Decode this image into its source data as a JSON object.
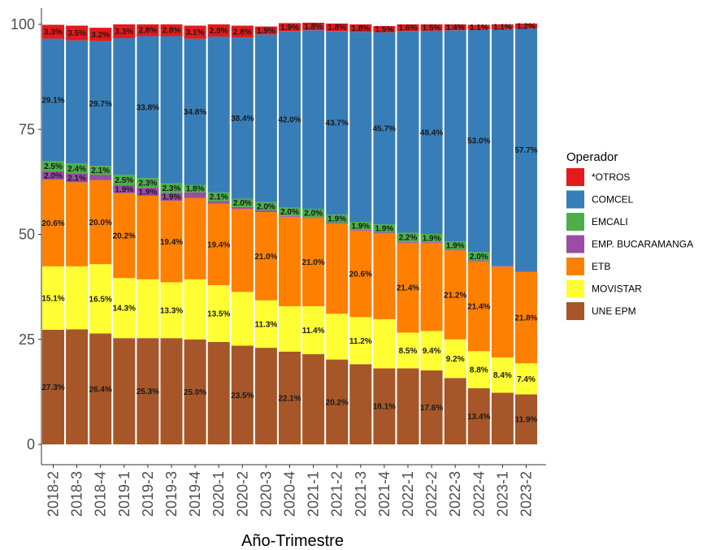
{
  "chart_data": {
    "type": "bar",
    "stacked": true,
    "title": "",
    "xlabel": "Año-Trimestre",
    "ylabel": "",
    "ylim": [
      0,
      100
    ],
    "yticks": [
      0,
      25,
      50,
      75,
      100
    ],
    "legend_title": "Operador",
    "legend_position": "right",
    "grid": false,
    "categories": [
      "2018-2",
      "2018-3",
      "2018-4",
      "2019-1",
      "2019-2",
      "2019-3",
      "2019-4",
      "2020-1",
      "2020-2",
      "2020-3",
      "2020-4",
      "2021-1",
      "2021-2",
      "2021-3",
      "2021-4",
      "2022-1",
      "2022-2",
      "2022-3",
      "2022-4",
      "2023-1",
      "2023-2"
    ],
    "stack_order": [
      "UNE EPM",
      "MOVISTAR",
      "ETB",
      "EMP. BUCARAMANGA",
      "EMCALI",
      "COMCEL",
      "*OTROS"
    ],
    "legend_order": [
      "*OTROS",
      "COMCEL",
      "EMCALI",
      "EMP. BUCARAMANGA",
      "ETB",
      "MOVISTAR",
      "UNE EPM"
    ],
    "series": [
      {
        "name": "UNE EPM",
        "color": "#A65628",
        "values": [
          27.3,
          27.4,
          26.4,
          25.3,
          25.3,
          25.3,
          25.0,
          24.4,
          23.5,
          23.0,
          22.1,
          21.5,
          20.2,
          19.1,
          18.1,
          18.1,
          17.6,
          15.8,
          13.4,
          12.3,
          11.9
        ],
        "labels": [
          "27.3%",
          "",
          "26.4%",
          "",
          "25.3%",
          "",
          "25.0%",
          "",
          "23.5%",
          "",
          "22.1%",
          "",
          "20.2%",
          "",
          "18.1%",
          "",
          "17.6%",
          "",
          "13.4%",
          "",
          "11.9%"
        ]
      },
      {
        "name": "MOVISTAR",
        "color": "#FFFF33",
        "values": [
          15.1,
          15.0,
          16.5,
          14.3,
          14.0,
          13.3,
          14.3,
          13.5,
          12.8,
          11.3,
          10.8,
          11.4,
          10.9,
          11.2,
          11.7,
          8.5,
          9.4,
          9.2,
          8.8,
          8.4,
          7.4
        ],
        "labels": [
          "15.1%",
          "",
          "16.5%",
          "14.3%",
          "",
          "13.3%",
          "",
          "13.5%",
          "",
          "11.3%",
          "",
          "11.4%",
          "",
          "11.2%",
          "",
          "8.5%",
          "9.4%",
          "9.2%",
          "8.8%",
          "8.4%",
          "7.4%"
        ]
      },
      {
        "name": "ETB",
        "color": "#FF7F00",
        "values": [
          20.6,
          20.0,
          20.0,
          20.2,
          19.9,
          19.4,
          19.4,
          19.4,
          19.8,
          21.0,
          21.3,
          21.0,
          21.5,
          20.6,
          20.5,
          21.4,
          21.0,
          21.2,
          21.4,
          21.6,
          21.8
        ],
        "labels": [
          "20.6%",
          "",
          "20.0%",
          "20.2%",
          "",
          "19.4%",
          "",
          "19.4%",
          "",
          "21.0%",
          "",
          "21.0%",
          "",
          "20.6%",
          "",
          "21.4%",
          "",
          "21.2%",
          "21.4%",
          "",
          "21.8%"
        ]
      },
      {
        "name": "EMP. BUCARAMANGA",
        "color": "#984EA3",
        "values": [
          2.0,
          2.1,
          1.3,
          1.9,
          1.9,
          1.9,
          1.3,
          0.6,
          0.4,
          0.4,
          0.2,
          0.2,
          0.2,
          0.2,
          0.2,
          0.2,
          0.2,
          0.2,
          0.2,
          0.2,
          0.2
        ],
        "labels": [
          "2.0%",
          "2.1%",
          "",
          "1.9%",
          "1.9%",
          "1.9%",
          "",
          "",
          "",
          "",
          "",
          "",
          "",
          "",
          "",
          "",
          "",
          "",
          "",
          "",
          ""
        ]
      },
      {
        "name": "EMCALI",
        "color": "#4DAF4A",
        "values": [
          2.5,
          2.4,
          2.1,
          2.5,
          2.3,
          2.3,
          1.8,
          2.1,
          2.0,
          2.0,
          2.0,
          2.0,
          1.9,
          1.9,
          1.9,
          2.2,
          1.9,
          1.9,
          2.0,
          0.0,
          0.0
        ],
        "labels": [
          "2.5%",
          "2.4%",
          "2.1%",
          "2.5%",
          "2.3%",
          "2.3%",
          "1.8%",
          "2.1%",
          "2.0%",
          "2.0%",
          "2.0%",
          "2.0%",
          "1.9%",
          "1.9%",
          "1.9%",
          "2.2%",
          "1.9%",
          "1.9%",
          "2.0%",
          "",
          ""
        ]
      },
      {
        "name": "COMCEL",
        "color": "#377EB8",
        "values": [
          29.1,
          29.3,
          29.7,
          32.5,
          33.8,
          35.0,
          34.8,
          37.1,
          38.4,
          39.9,
          42.0,
          42.5,
          43.7,
          45.2,
          45.7,
          48.0,
          48.4,
          50.3,
          53.0,
          56.4,
          57.7
        ],
        "labels": [
          "29.1%",
          "",
          "29.7%",
          "",
          "33.8%",
          "",
          "34.8%",
          "",
          "38.4%",
          "",
          "42.0%",
          "",
          "43.7%",
          "",
          "45.7%",
          "",
          "48.4%",
          "",
          "53.0%",
          "",
          "57.7%"
        ]
      },
      {
        "name": "*OTROS",
        "color": "#E41A1C",
        "values": [
          3.3,
          3.5,
          3.2,
          3.3,
          2.8,
          2.8,
          3.1,
          2.9,
          2.8,
          1.9,
          1.9,
          1.8,
          1.8,
          1.8,
          1.5,
          1.6,
          1.5,
          1.4,
          1.1,
          1.1,
          1.2
        ],
        "labels": [
          "3.3%",
          "3.5%",
          "3.2%",
          "3.3%",
          "2.8%",
          "2.8%",
          "3.1%",
          "2.9%",
          "2.8%",
          "1.9%",
          "1.9%",
          "1.8%",
          "1.8%",
          "1.8%",
          "1.5%",
          "1.6%",
          "1.5%",
          "1.4%",
          "1.1%",
          "1.1%",
          "1.2%"
        ]
      }
    ]
  }
}
